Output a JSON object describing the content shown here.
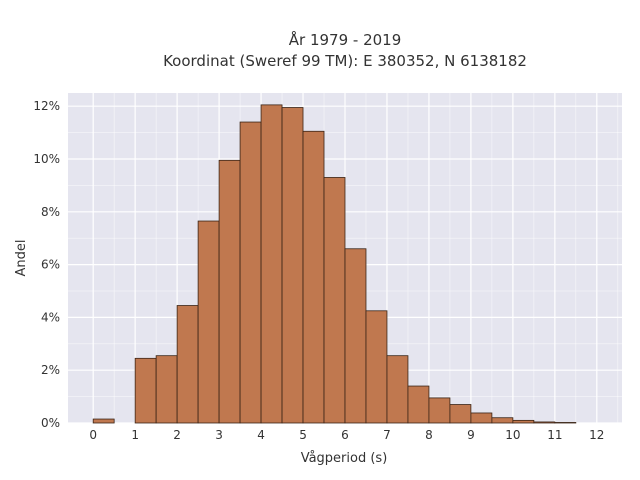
{
  "chart_data": {
    "type": "bar",
    "title": [
      "År 1979 - 2019",
      "Koordinat (Sweref 99 TM): E 380352, N 6138182"
    ],
    "xlabel": "Vågperiod (s)",
    "ylabel": "Andel",
    "bin_width": 0.5,
    "bins": [
      {
        "start": 0.0,
        "value": 0.15
      },
      {
        "start": 0.5,
        "value": 0.0
      },
      {
        "start": 1.0,
        "value": 2.45
      },
      {
        "start": 1.5,
        "value": 2.55
      },
      {
        "start": 2.0,
        "value": 4.45
      },
      {
        "start": 2.5,
        "value": 7.65
      },
      {
        "start": 3.0,
        "value": 9.95
      },
      {
        "start": 3.5,
        "value": 11.4
      },
      {
        "start": 4.0,
        "value": 12.05
      },
      {
        "start": 4.5,
        "value": 11.95
      },
      {
        "start": 5.0,
        "value": 11.05
      },
      {
        "start": 5.5,
        "value": 9.3
      },
      {
        "start": 6.0,
        "value": 6.6
      },
      {
        "start": 6.5,
        "value": 4.25
      },
      {
        "start": 7.0,
        "value": 2.55
      },
      {
        "start": 7.5,
        "value": 1.4
      },
      {
        "start": 8.0,
        "value": 0.95
      },
      {
        "start": 8.5,
        "value": 0.7
      },
      {
        "start": 9.0,
        "value": 0.38
      },
      {
        "start": 9.5,
        "value": 0.2
      },
      {
        "start": 10.0,
        "value": 0.1
      },
      {
        "start": 10.5,
        "value": 0.04
      },
      {
        "start": 11.0,
        "value": 0.02
      }
    ],
    "xlim": [
      -0.6,
      12.6
    ],
    "ylim": [
      0,
      12.5
    ],
    "xticks": [
      0,
      1,
      2,
      3,
      4,
      5,
      6,
      7,
      8,
      9,
      10,
      11,
      12
    ],
    "yticks": [
      0,
      2,
      4,
      6,
      8,
      10,
      12
    ],
    "ytick_suffix": "%",
    "grid": true,
    "colors": {
      "bar": "#c0784f",
      "bar_edge": "#3a2416",
      "plot_bg": "#e5e5ef",
      "grid": "#ffffff",
      "text": "#333333"
    }
  }
}
